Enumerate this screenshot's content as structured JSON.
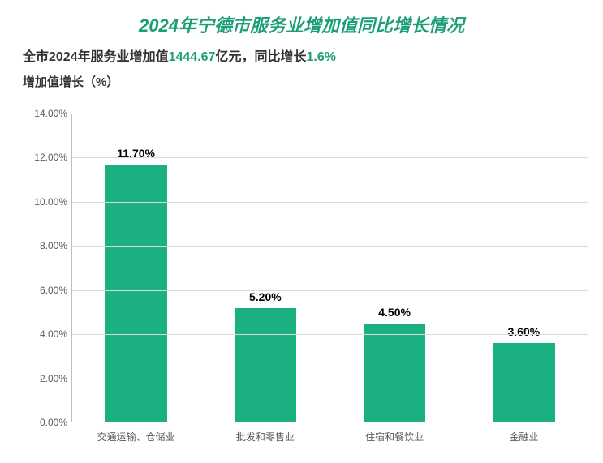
{
  "title": {
    "text": "2024年宁德市服务业增加值同比增长情况",
    "color": "#1c9e77",
    "fontsize": 22
  },
  "subtitle": {
    "prefix": "全市2024年服务业增加值",
    "value1": "1444.67",
    "mid": "亿元，同比增长",
    "value2": "1.6%",
    "text_color": "#333333",
    "highlight_color": "#1c9e77",
    "fontsize": 16
  },
  "ylabel": {
    "text": "增加值增长（%）",
    "color": "#333333",
    "fontsize": 15
  },
  "chart": {
    "type": "bar",
    "categories": [
      "交通运输、仓储业",
      "批发和零售业",
      "住宿和餐饮业",
      "金融业"
    ],
    "values": [
      11.7,
      5.2,
      4.5,
      3.6
    ],
    "value_labels": [
      "11.70%",
      "5.20%",
      "4.50%",
      "3.60%"
    ],
    "bar_color": "#1ab082",
    "ylim": [
      0,
      14
    ],
    "ytick_step": 2,
    "ytick_labels": [
      "0.00%",
      "2.00%",
      "4.00%",
      "6.00%",
      "8.00%",
      "10.00%",
      "12.00%",
      "14.00%"
    ],
    "grid_color": "#d9d9d9",
    "axis_color": "#bfbfbf",
    "background_color": "#ffffff",
    "bar_width_pct": 12,
    "label_fontsize": 12,
    "value_label_fontsize": 14
  }
}
